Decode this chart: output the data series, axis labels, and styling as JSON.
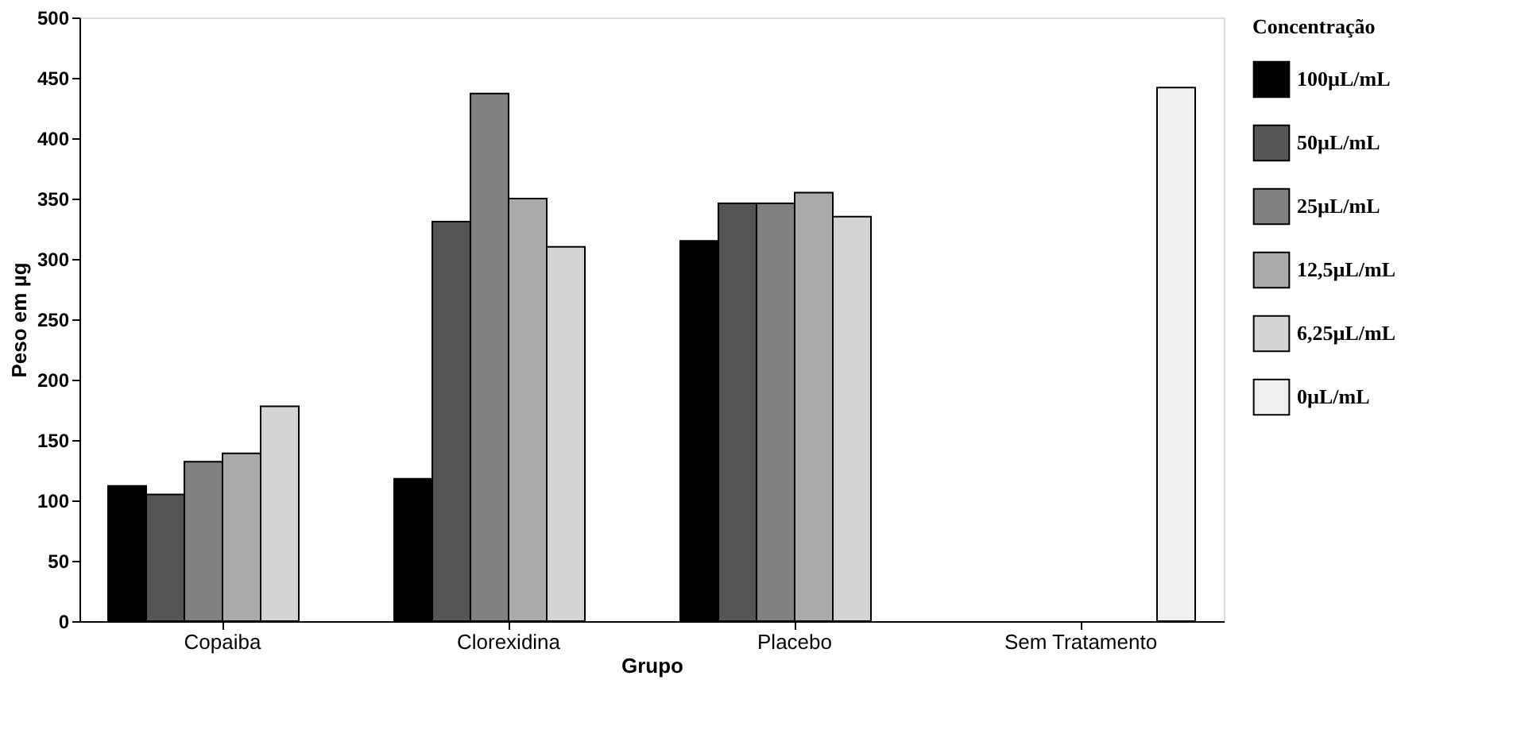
{
  "chart_data": {
    "type": "bar",
    "xlabel": "Grupo",
    "ylabel": "Peso em µg",
    "legend_title": "Concentração",
    "categories": [
      "Copaiba",
      "Clorexidina",
      "Placebo",
      "Sem Tratamento"
    ],
    "series": [
      {
        "name": "100µL/mL",
        "color": "#000000",
        "values": [
          112,
          118,
          315,
          null
        ]
      },
      {
        "name": "50µL/mL",
        "color": "#555555",
        "values": [
          105,
          331,
          346,
          null
        ]
      },
      {
        "name": "25µL/mL",
        "color": "#808080",
        "values": [
          132,
          437,
          346,
          null
        ]
      },
      {
        "name": "12,5µL/mL",
        "color": "#aaaaaa",
        "values": [
          139,
          350,
          355,
          null
        ]
      },
      {
        "name": "6,25µL/mL",
        "color": "#d4d4d4",
        "values": [
          178,
          310,
          335,
          null
        ]
      },
      {
        "name": "0µL/mL",
        "color": "#f0f0f0",
        "values": [
          null,
          null,
          null,
          442
        ]
      }
    ],
    "ylim": [
      0,
      500
    ],
    "yticks": [
      0,
      50,
      100,
      150,
      200,
      250,
      300,
      350,
      400,
      450,
      500
    ],
    "grid": false,
    "legend": "right"
  }
}
